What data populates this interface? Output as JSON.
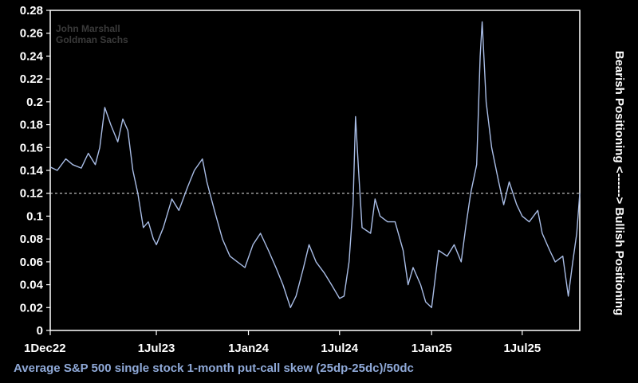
{
  "chart_data": {
    "type": "line",
    "title": "",
    "caption": "Average S&P 500 single stock 1-month put-call skew (25dp-25dc)/50dc",
    "ylabel": "Bearish Positioning <------> Bullish Positioning",
    "watermark": [
      "John Marshall",
      "Goldman Sachs"
    ],
    "x_ticks": [
      "1Dec22",
      "1Jul23",
      "1Jan24",
      "1Jul24",
      "1Jan25",
      "1Jul25"
    ],
    "x_tick_dates": [
      "2022-12-01",
      "2023-07-01",
      "2024-01-01",
      "2024-07-01",
      "2025-01-01",
      "2025-07-01"
    ],
    "xlim": [
      "2022-12-01",
      "2025-10-24"
    ],
    "y_ticks": [
      0,
      0.02,
      0.04,
      0.06,
      0.08,
      0.1,
      0.12,
      0.14,
      0.16,
      0.18,
      0.2,
      0.22,
      0.24,
      0.26,
      0.28
    ],
    "y_tick_labels": [
      "0",
      "0.02",
      "0.04",
      "0.06",
      "0.08",
      "0.1",
      "0.12",
      "0.14",
      "0.16",
      "0.18",
      "0.2",
      "0.22",
      "0.24",
      "0.26",
      "0.28"
    ],
    "ylim": [
      0,
      0.28
    ],
    "reference_line": {
      "value": 0.12,
      "style": "dashed"
    },
    "grid": false,
    "colors": {
      "background": "#000000",
      "series": "#a9bde6",
      "axis": "#ffffff",
      "caption": "#8fa9d8",
      "reference": "#d0d0d0"
    },
    "series": [
      {
        "points": [
          [
            "2022-12-01",
            0.143
          ],
          [
            "2022-12-15",
            0.14
          ],
          [
            "2023-01-01",
            0.15
          ],
          [
            "2023-01-15",
            0.145
          ],
          [
            "2023-02-01",
            0.142
          ],
          [
            "2023-02-15",
            0.155
          ],
          [
            "2023-03-01",
            0.145
          ],
          [
            "2023-03-10",
            0.16
          ],
          [
            "2023-03-20",
            0.195
          ],
          [
            "2023-04-01",
            0.18
          ],
          [
            "2023-04-15",
            0.165
          ],
          [
            "2023-04-25",
            0.185
          ],
          [
            "2023-05-05",
            0.175
          ],
          [
            "2023-05-15",
            0.14
          ],
          [
            "2023-05-25",
            0.12
          ],
          [
            "2023-06-05",
            0.09
          ],
          [
            "2023-06-15",
            0.095
          ],
          [
            "2023-06-25",
            0.08
          ],
          [
            "2023-07-01",
            0.075
          ],
          [
            "2023-07-15",
            0.09
          ],
          [
            "2023-08-01",
            0.115
          ],
          [
            "2023-08-15",
            0.105
          ],
          [
            "2023-09-01",
            0.125
          ],
          [
            "2023-09-15",
            0.14
          ],
          [
            "2023-10-01",
            0.15
          ],
          [
            "2023-10-10",
            0.13
          ],
          [
            "2023-10-25",
            0.105
          ],
          [
            "2023-11-10",
            0.08
          ],
          [
            "2023-11-25",
            0.065
          ],
          [
            "2023-12-10",
            0.06
          ],
          [
            "2023-12-25",
            0.055
          ],
          [
            "2024-01-10",
            0.075
          ],
          [
            "2024-01-25",
            0.085
          ],
          [
            "2024-02-10",
            0.07
          ],
          [
            "2024-02-25",
            0.055
          ],
          [
            "2024-03-10",
            0.04
          ],
          [
            "2024-03-25",
            0.02
          ],
          [
            "2024-04-05",
            0.03
          ],
          [
            "2024-04-20",
            0.055
          ],
          [
            "2024-05-01",
            0.075
          ],
          [
            "2024-05-15",
            0.06
          ],
          [
            "2024-06-01",
            0.05
          ],
          [
            "2024-06-15",
            0.04
          ],
          [
            "2024-07-01",
            0.028
          ],
          [
            "2024-07-10",
            0.03
          ],
          [
            "2024-07-20",
            0.06
          ],
          [
            "2024-07-28",
            0.11
          ],
          [
            "2024-08-02",
            0.187
          ],
          [
            "2024-08-08",
            0.14
          ],
          [
            "2024-08-15",
            0.09
          ],
          [
            "2024-09-01",
            0.085
          ],
          [
            "2024-09-10",
            0.115
          ],
          [
            "2024-09-20",
            0.1
          ],
          [
            "2024-10-05",
            0.095
          ],
          [
            "2024-10-20",
            0.095
          ],
          [
            "2024-11-05",
            0.07
          ],
          [
            "2024-11-15",
            0.04
          ],
          [
            "2024-11-25",
            0.055
          ],
          [
            "2024-12-10",
            0.04
          ],
          [
            "2024-12-20",
            0.025
          ],
          [
            "2025-01-01",
            0.02
          ],
          [
            "2025-01-15",
            0.07
          ],
          [
            "2025-02-01",
            0.065
          ],
          [
            "2025-02-15",
            0.075
          ],
          [
            "2025-03-01",
            0.06
          ],
          [
            "2025-03-10",
            0.09
          ],
          [
            "2025-03-20",
            0.12
          ],
          [
            "2025-04-01",
            0.145
          ],
          [
            "2025-04-08",
            0.24
          ],
          [
            "2025-04-12",
            0.27
          ],
          [
            "2025-04-20",
            0.2
          ],
          [
            "2025-05-01",
            0.16
          ],
          [
            "2025-05-15",
            0.13
          ],
          [
            "2025-05-25",
            0.11
          ],
          [
            "2025-06-05",
            0.13
          ],
          [
            "2025-06-20",
            0.11
          ],
          [
            "2025-07-01",
            0.1
          ],
          [
            "2025-07-15",
            0.095
          ],
          [
            "2025-08-01",
            0.105
          ],
          [
            "2025-08-10",
            0.085
          ],
          [
            "2025-08-25",
            0.07
          ],
          [
            "2025-09-05",
            0.06
          ],
          [
            "2025-09-20",
            0.065
          ],
          [
            "2025-10-01",
            0.03
          ],
          [
            "2025-10-10",
            0.06
          ],
          [
            "2025-10-18",
            0.085
          ],
          [
            "2025-10-24",
            0.12
          ]
        ]
      }
    ]
  }
}
